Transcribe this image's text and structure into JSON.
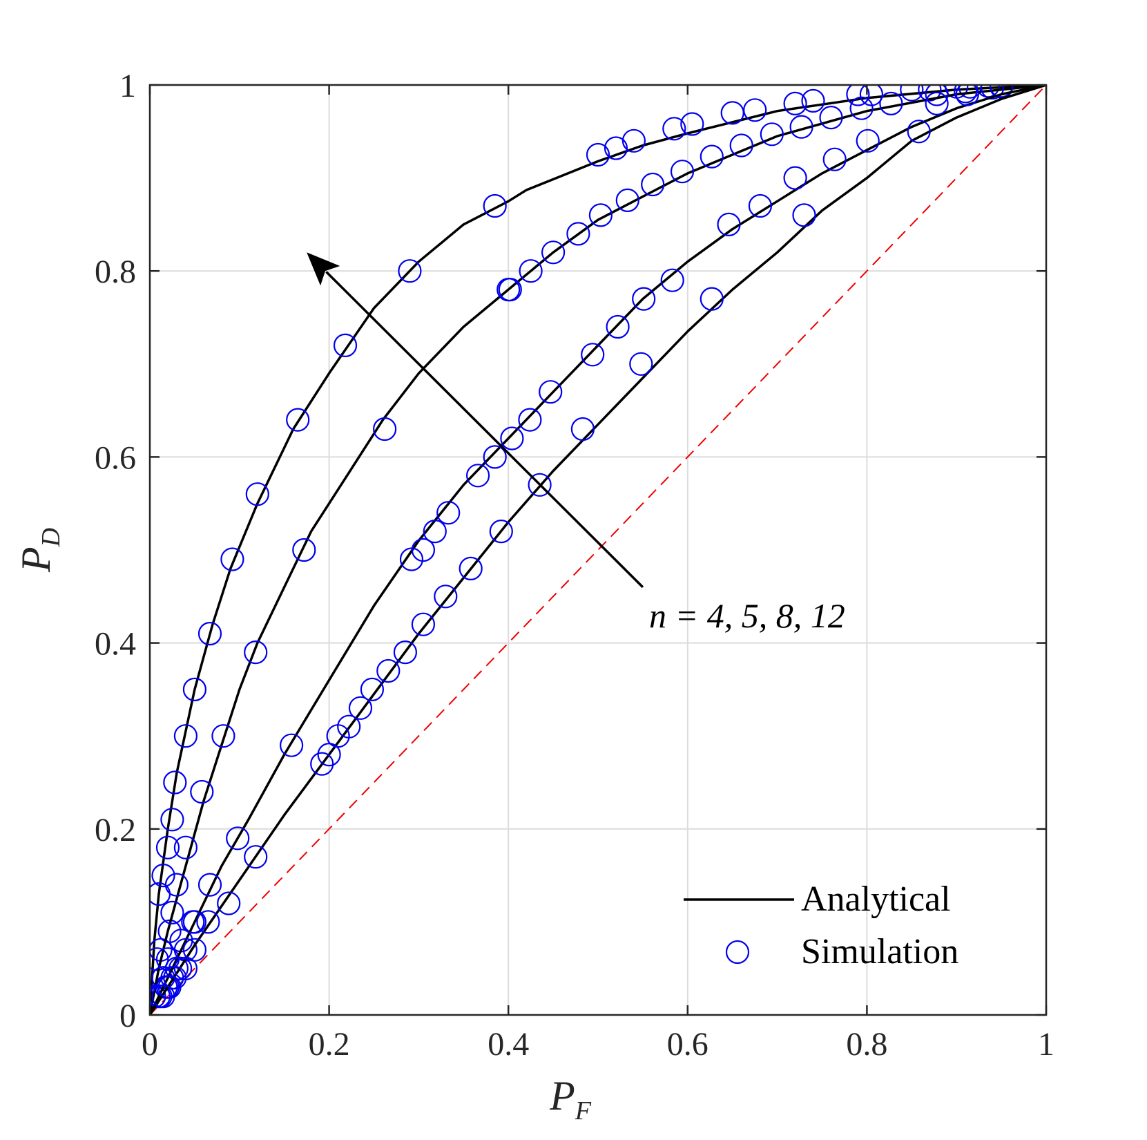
{
  "chart_data": {
    "type": "line",
    "title": "",
    "xlabel": "P",
    "xlabel_sub": "F",
    "ylabel": "P",
    "ylabel_sub": "D",
    "xlim": [
      0,
      1
    ],
    "ylim": [
      0,
      1
    ],
    "grid": true,
    "xticks": [
      0,
      0.2,
      0.4,
      0.6,
      0.8,
      1
    ],
    "yticks": [
      0,
      0.2,
      0.4,
      0.6,
      0.8,
      1
    ],
    "xtick_labels": [
      "0",
      "0.2",
      "0.4",
      "0.6",
      "0.8",
      "1"
    ],
    "ytick_labels": [
      "0",
      "0.2",
      "0.4",
      "0.6",
      "0.8",
      "1"
    ],
    "legend": {
      "placement": "bottom-right",
      "entries": [
        {
          "label": "Analytical",
          "style": "solid-line",
          "color": "#000000"
        },
        {
          "label": "Simulation",
          "style": "circle-marker",
          "color": "#0000ee"
        }
      ]
    },
    "annotation": {
      "text": "n = 4, 5, 8, 12",
      "arrow_from": [
        0.55,
        0.46
      ],
      "arrow_to": [
        0.175,
        0.82
      ]
    },
    "reference_line": {
      "name": "chance",
      "x": [
        0,
        1
      ],
      "y": [
        0,
        1
      ],
      "style": "dashed",
      "color": "#ee0000"
    },
    "series": [
      {
        "name": "n = 12",
        "analytical": {
          "x": [
            0,
            0.005,
            0.01,
            0.02,
            0.03,
            0.05,
            0.07,
            0.09,
            0.12,
            0.16,
            0.2,
            0.25,
            0.3,
            0.35,
            0.4,
            0.42,
            0.5,
            0.55,
            0.6,
            0.7,
            0.8,
            0.9,
            1.0
          ],
          "y": [
            0,
            0.08,
            0.13,
            0.2,
            0.26,
            0.35,
            0.42,
            0.48,
            0.55,
            0.63,
            0.69,
            0.76,
            0.81,
            0.85,
            0.875,
            0.887,
            0.918,
            0.935,
            0.948,
            0.972,
            0.986,
            0.995,
            1.0
          ]
        },
        "simulation": {
          "x": [
            0.005,
            0.008,
            0.01,
            0.012,
            0.015,
            0.018,
            0.02,
            0.022,
            0.025,
            0.028,
            0.04,
            0.05,
            0.067,
            0.092,
            0.12,
            0.165,
            0.218,
            0.29,
            0.385,
            0.5,
            0.52,
            0.54,
            0.585,
            0.605,
            0.65,
            0.675,
            0.72,
            0.74,
            0.79,
            0.805,
            0.85,
            0.87,
            0.9,
            0.915,
            0.935,
            0.95
          ],
          "y": [
            0.02,
            0.06,
            0.13,
            0.07,
            0.15,
            0.03,
            0.18,
            0.09,
            0.21,
            0.25,
            0.3,
            0.35,
            0.41,
            0.49,
            0.56,
            0.64,
            0.72,
            0.8,
            0.87,
            0.925,
            0.932,
            0.94,
            0.953,
            0.958,
            0.97,
            0.973,
            0.98,
            0.983,
            0.99,
            0.99,
            0.995,
            0.995,
            0.998,
            0.998,
            0.999,
            0.999
          ]
        }
      },
      {
        "name": "n = 8",
        "analytical": {
          "x": [
            0,
            0.01,
            0.02,
            0.04,
            0.06,
            0.08,
            0.1,
            0.12,
            0.15,
            0.18,
            0.22,
            0.26,
            0.3,
            0.35,
            0.4,
            0.45,
            0.5,
            0.55,
            0.6,
            0.7,
            0.8,
            0.9,
            1.0
          ],
          "y": [
            0,
            0.05,
            0.09,
            0.16,
            0.23,
            0.29,
            0.35,
            0.4,
            0.46,
            0.52,
            0.58,
            0.64,
            0.69,
            0.74,
            0.78,
            0.82,
            0.855,
            0.88,
            0.905,
            0.945,
            0.972,
            0.99,
            1.0
          ]
        },
        "simulation": {
          "x": [
            0.01,
            0.015,
            0.02,
            0.025,
            0.03,
            0.035,
            0.04,
            0.05,
            0.058,
            0.082,
            0.118,
            0.172,
            0.262,
            0.4,
            0.402,
            0.425,
            0.45,
            0.478,
            0.503,
            0.533,
            0.561,
            0.594,
            0.627,
            0.66,
            0.694,
            0.727,
            0.76,
            0.794,
            0.827,
            0.878,
            0.91,
            0.94,
            0.95
          ],
          "y": [
            0.02,
            0.04,
            0.06,
            0.11,
            0.14,
            0.08,
            0.18,
            0.1,
            0.24,
            0.3,
            0.39,
            0.5,
            0.63,
            0.78,
            0.78,
            0.8,
            0.82,
            0.84,
            0.86,
            0.876,
            0.893,
            0.907,
            0.923,
            0.935,
            0.947,
            0.955,
            0.965,
            0.975,
            0.98,
            0.99,
            0.993,
            0.997,
            0.998
          ]
        }
      },
      {
        "name": "n = 5",
        "analytical": {
          "x": [
            0,
            0.02,
            0.05,
            0.08,
            0.11,
            0.15,
            0.2,
            0.25,
            0.3,
            0.35,
            0.4,
            0.45,
            0.5,
            0.55,
            0.6,
            0.65,
            0.7,
            0.75,
            0.8,
            0.85,
            0.9,
            0.95,
            1.0
          ],
          "y": [
            0,
            0.04,
            0.1,
            0.16,
            0.21,
            0.28,
            0.36,
            0.44,
            0.51,
            0.57,
            0.62,
            0.67,
            0.72,
            0.77,
            0.81,
            0.845,
            0.875,
            0.905,
            0.93,
            0.955,
            0.975,
            0.99,
            1.0
          ]
        },
        "simulation": {
          "x": [
            0.012,
            0.02,
            0.025,
            0.03,
            0.04,
            0.048,
            0.067,
            0.098,
            0.158,
            0.292,
            0.305,
            0.318,
            0.333,
            0.366,
            0.385,
            0.404,
            0.424,
            0.447,
            0.494,
            0.522,
            0.551,
            0.583,
            0.646,
            0.681,
            0.72,
            0.764,
            0.801,
            0.878,
            0.912
          ],
          "y": [
            0.02,
            0.03,
            0.04,
            0.05,
            0.07,
            0.1,
            0.14,
            0.19,
            0.29,
            0.49,
            0.5,
            0.52,
            0.54,
            0.58,
            0.6,
            0.62,
            0.64,
            0.67,
            0.71,
            0.74,
            0.77,
            0.79,
            0.85,
            0.87,
            0.9,
            0.92,
            0.94,
            0.98,
            0.99
          ]
        }
      },
      {
        "name": "n = 4",
        "analytical": {
          "x": [
            0,
            0.02,
            0.05,
            0.1,
            0.15,
            0.2,
            0.25,
            0.3,
            0.35,
            0.4,
            0.45,
            0.5,
            0.55,
            0.6,
            0.65,
            0.7,
            0.75,
            0.8,
            0.85,
            0.9,
            0.95,
            1.0
          ],
          "y": [
            0,
            0.03,
            0.075,
            0.145,
            0.215,
            0.28,
            0.345,
            0.41,
            0.47,
            0.53,
            0.585,
            0.635,
            0.685,
            0.735,
            0.78,
            0.82,
            0.865,
            0.9,
            0.94,
            0.965,
            0.985,
            1.0
          ]
        },
        "simulation": {
          "x": [
            0.015,
            0.022,
            0.028,
            0.034,
            0.04,
            0.05,
            0.065,
            0.088,
            0.118,
            0.192,
            0.2,
            0.21,
            0.222,
            0.235,
            0.248,
            0.266,
            0.285,
            0.305,
            0.33,
            0.358,
            0.392,
            0.435,
            0.483,
            0.548,
            0.627,
            0.73,
            0.858
          ],
          "y": [
            0.02,
            0.03,
            0.04,
            0.05,
            0.05,
            0.07,
            0.1,
            0.12,
            0.17,
            0.27,
            0.28,
            0.3,
            0.31,
            0.33,
            0.35,
            0.37,
            0.39,
            0.42,
            0.45,
            0.48,
            0.52,
            0.57,
            0.63,
            0.7,
            0.77,
            0.86,
            0.95
          ]
        }
      }
    ]
  }
}
